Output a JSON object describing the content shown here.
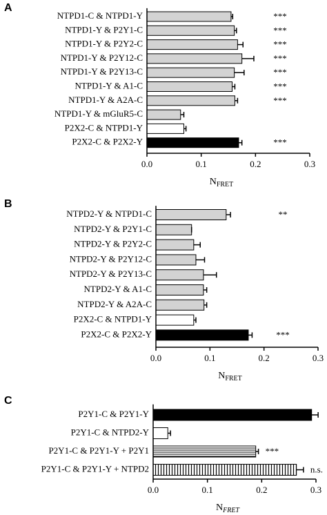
{
  "chart_data": [
    {
      "type": "bar",
      "panel": "A",
      "categories": [
        "NTPD1-C & NTPD1-Y",
        "NTPD1-Y & P2Y1-C",
        "NTPD1-Y & P2Y2-C",
        "NTPD1-Y & P2Y12-C",
        "NTPD1-Y & P2Y13-C",
        "NTPD1-Y & A1-C",
        "NTPD1-Y & A2A-C",
        "NTPD1-Y & mGluR5-C",
        "P2X2-C & NTPD1-Y",
        "P2X2-C & P2X2-Y"
      ],
      "values": [
        0.155,
        0.161,
        0.167,
        0.175,
        0.161,
        0.157,
        0.162,
        0.062,
        0.068,
        0.169
      ],
      "errors": [
        0.003,
        0.004,
        0.01,
        0.022,
        0.018,
        0.005,
        0.005,
        0.006,
        0.004,
        0.006
      ],
      "colors": [
        "#d3d3d3",
        "#d3d3d3",
        "#d3d3d3",
        "#d3d3d3",
        "#d3d3d3",
        "#d3d3d3",
        "#d3d3d3",
        "#d3d3d3",
        "#ffffff",
        "#000000"
      ],
      "significance": [
        "***",
        "***",
        "***",
        "***",
        "***",
        "***",
        "***",
        null,
        null,
        "***"
      ],
      "xlim": [
        0,
        0.3
      ],
      "xticks": [
        {
          "value": 0,
          "label": "0.0"
        },
        0.1,
        0.2,
        0.3
      ],
      "xlabel": "N",
      "xlabel_sub": "FRET"
    },
    {
      "type": "bar",
      "panel": "B",
      "categories": [
        "NTPD2-Y & NTPD1-C",
        "NTPD2-Y & P2Y1-C",
        "NTPD2-Y & P2Y2-C",
        "NTPD2-Y & P2Y12-C",
        "NTPD2-Y & P2Y13-C",
        "NTPD2-Y & A1-C",
        "NTPD2-Y & A2A-C",
        "P2X2-C & NTPD1-Y",
        "P2X2-C & P2X2-Y"
      ],
      "values": [
        0.13,
        0.066,
        0.07,
        0.074,
        0.088,
        0.088,
        0.089,
        0.07,
        0.171
      ],
      "errors": [
        0.008,
        0.0,
        0.012,
        0.016,
        0.024,
        0.006,
        0.005,
        0.004,
        0.007
      ],
      "colors": [
        "#d3d3d3",
        "#d3d3d3",
        "#d3d3d3",
        "#d3d3d3",
        "#d3d3d3",
        "#d3d3d3",
        "#d3d3d3",
        "#ffffff",
        "#000000"
      ],
      "significance": [
        "**",
        null,
        null,
        null,
        null,
        null,
        null,
        null,
        "***"
      ],
      "xlim": [
        0,
        0.3
      ],
      "xticks": [
        {
          "value": 0,
          "label": "0.0"
        },
        0.1,
        0.2,
        0.3
      ],
      "xlabel": "N",
      "xlabel_sub": "FRET"
    },
    {
      "type": "bar",
      "panel": "C",
      "categories": [
        "P2Y1-C & P2Y1-Y",
        "P2Y1-C & NTPD2-Y",
        "P2Y1-C & P2Y1-Y + P2Y1",
        "P2Y1-C & P2Y1-Y + NTPD2"
      ],
      "values": [
        0.292,
        0.027,
        0.189,
        0.264
      ],
      "errors": [
        0.012,
        0.005,
        0.005,
        0.013
      ],
      "colors": [
        "#000000",
        "#ffffff",
        "#ffffff",
        "#ffffff"
      ],
      "patterns": [
        null,
        null,
        "horizontal-lines",
        "vertical-lines"
      ],
      "significance": [
        null,
        null,
        "***",
        "n.s."
      ],
      "xlim": [
        0,
        0.3
      ],
      "xticks": [
        {
          "value": 0,
          "label": "0.0"
        },
        0.1,
        0.2,
        0.3
      ],
      "xlabel": "N",
      "xlabel_sub": "FRET",
      "xlabel_italic": true
    }
  ]
}
